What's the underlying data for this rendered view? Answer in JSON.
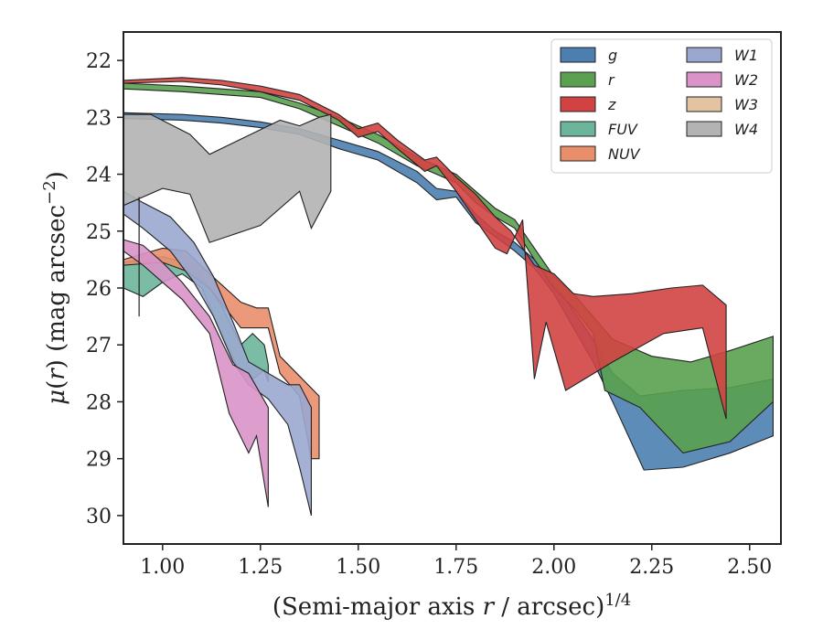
{
  "chart_data": {
    "type": "area",
    "xlabel": "(Semi-major axis r / arcsec)^1/4",
    "xlabel_parts": {
      "prefix": "(Semi-major axis ",
      "var": "r",
      "middle": " / arcsec)",
      "exp": "1/4"
    },
    "ylabel": "μ(r) (mag arcsec−2)",
    "ylabel_parts": {
      "mu": "μ",
      "open": "(",
      "var": "r",
      "close": ")",
      "unit": " (mag arcsec",
      "exp": "−2",
      "end": ")"
    },
    "xlim": [
      0.9,
      2.58
    ],
    "ylim": [
      30.5,
      21.5
    ],
    "y_inverted": true,
    "xticks": [
      1.0,
      1.25,
      1.5,
      1.75,
      2.0,
      2.25,
      2.5
    ],
    "xtick_labels": [
      "1.00",
      "1.25",
      "1.50",
      "1.75",
      "2.00",
      "2.25",
      "2.50"
    ],
    "yticks": [
      22,
      23,
      24,
      25,
      26,
      27,
      28,
      29,
      30
    ],
    "ytick_labels": [
      "22",
      "23",
      "24",
      "25",
      "26",
      "27",
      "28",
      "29",
      "30"
    ],
    "legend_position": "top-right",
    "legend_columns": 2,
    "series": [
      {
        "name": "g",
        "color": "#4c7fb0",
        "upper": [
          [
            0.9,
            22.92
          ],
          [
            1.05,
            22.95
          ],
          [
            1.15,
            23.0
          ],
          [
            1.25,
            23.08
          ],
          [
            1.35,
            23.2
          ],
          [
            1.45,
            23.4
          ],
          [
            1.55,
            23.6
          ],
          [
            1.65,
            23.95
          ],
          [
            1.7,
            24.25
          ],
          [
            1.75,
            24.3
          ],
          [
            1.8,
            24.7
          ],
          [
            1.85,
            25.0
          ],
          [
            1.9,
            25.2
          ],
          [
            1.95,
            25.5
          ],
          [
            2.0,
            25.9
          ],
          [
            2.05,
            26.4
          ],
          [
            2.1,
            26.9
          ],
          [
            2.15,
            27.5
          ],
          [
            2.22,
            27.9
          ],
          [
            2.33,
            27.8
          ],
          [
            2.45,
            27.75
          ],
          [
            2.56,
            27.6
          ]
        ],
        "lower": [
          [
            0.9,
            23.02
          ],
          [
            1.05,
            23.05
          ],
          [
            1.15,
            23.1
          ],
          [
            1.25,
            23.18
          ],
          [
            1.35,
            23.3
          ],
          [
            1.45,
            23.55
          ],
          [
            1.55,
            23.75
          ],
          [
            1.65,
            24.15
          ],
          [
            1.7,
            24.45
          ],
          [
            1.75,
            24.4
          ],
          [
            1.8,
            24.85
          ],
          [
            1.85,
            25.1
          ],
          [
            1.9,
            25.35
          ],
          [
            1.95,
            25.65
          ],
          [
            2.0,
            26.1
          ],
          [
            2.05,
            26.7
          ],
          [
            2.1,
            27.3
          ],
          [
            2.15,
            28.0
          ],
          [
            2.23,
            29.2
          ],
          [
            2.33,
            29.15
          ],
          [
            2.45,
            28.9
          ],
          [
            2.56,
            28.6
          ]
        ]
      },
      {
        "name": "r",
        "color": "#59a14f",
        "upper": [
          [
            0.9,
            22.4
          ],
          [
            1.05,
            22.45
          ],
          [
            1.15,
            22.5
          ],
          [
            1.25,
            22.55
          ],
          [
            1.35,
            22.75
          ],
          [
            1.45,
            23.0
          ],
          [
            1.55,
            23.3
          ],
          [
            1.65,
            23.7
          ],
          [
            1.75,
            24.0
          ],
          [
            1.8,
            24.3
          ],
          [
            1.85,
            24.6
          ],
          [
            1.9,
            24.8
          ],
          [
            1.95,
            25.3
          ],
          [
            2.0,
            25.8
          ],
          [
            2.05,
            26.1
          ],
          [
            2.1,
            26.5
          ],
          [
            2.15,
            26.9
          ],
          [
            2.25,
            27.2
          ],
          [
            2.35,
            27.3
          ],
          [
            2.45,
            27.1
          ],
          [
            2.56,
            26.85
          ]
        ],
        "lower": [
          [
            0.9,
            22.5
          ],
          [
            1.05,
            22.55
          ],
          [
            1.15,
            22.6
          ],
          [
            1.25,
            22.65
          ],
          [
            1.35,
            22.85
          ],
          [
            1.45,
            23.15
          ],
          [
            1.55,
            23.45
          ],
          [
            1.65,
            23.85
          ],
          [
            1.75,
            24.15
          ],
          [
            1.8,
            24.5
          ],
          [
            1.85,
            24.75
          ],
          [
            1.9,
            24.95
          ],
          [
            1.95,
            25.5
          ],
          [
            2.0,
            26.0
          ],
          [
            2.05,
            26.35
          ],
          [
            2.1,
            26.8
          ],
          [
            2.13,
            27.8
          ],
          [
            2.22,
            28.1
          ],
          [
            2.33,
            28.9
          ],
          [
            2.45,
            28.7
          ],
          [
            2.56,
            28.0
          ]
        ]
      },
      {
        "name": "z",
        "color": "#d14343",
        "upper": [
          [
            0.9,
            22.35
          ],
          [
            1.05,
            22.3
          ],
          [
            1.15,
            22.35
          ],
          [
            1.25,
            22.45
          ],
          [
            1.35,
            22.6
          ],
          [
            1.45,
            22.95
          ],
          [
            1.5,
            23.2
          ],
          [
            1.55,
            23.1
          ],
          [
            1.6,
            23.4
          ],
          [
            1.67,
            23.75
          ],
          [
            1.7,
            23.7
          ],
          [
            1.75,
            24.05
          ],
          [
            1.8,
            24.35
          ],
          [
            1.85,
            24.75
          ],
          [
            1.89,
            25.0
          ],
          [
            1.92,
            25.3
          ],
          [
            1.95,
            25.6
          ],
          [
            2.0,
            25.75
          ],
          [
            2.05,
            26.1
          ],
          [
            2.1,
            26.15
          ],
          [
            2.2,
            26.1
          ],
          [
            2.3,
            26.0
          ],
          [
            2.38,
            25.95
          ],
          [
            2.44,
            26.3
          ]
        ],
        "lower": [
          [
            0.9,
            22.4
          ],
          [
            1.05,
            22.37
          ],
          [
            1.15,
            22.43
          ],
          [
            1.25,
            22.55
          ],
          [
            1.35,
            22.7
          ],
          [
            1.45,
            23.05
          ],
          [
            1.5,
            23.35
          ],
          [
            1.55,
            23.25
          ],
          [
            1.6,
            23.55
          ],
          [
            1.67,
            23.95
          ],
          [
            1.7,
            23.85
          ],
          [
            1.75,
            24.3
          ],
          [
            1.8,
            24.8
          ],
          [
            1.85,
            25.3
          ],
          [
            1.88,
            25.4
          ],
          [
            1.92,
            24.8
          ],
          [
            1.95,
            27.6
          ],
          [
            1.98,
            26.6
          ],
          [
            2.03,
            27.8
          ],
          [
            2.15,
            27.3
          ],
          [
            2.28,
            26.8
          ],
          [
            2.38,
            26.7
          ],
          [
            2.44,
            28.3
          ]
        ]
      },
      {
        "name": "FUV",
        "color": "#6bb59a",
        "upper": [
          [
            0.9,
            25.55
          ],
          [
            1.0,
            25.45
          ],
          [
            1.08,
            25.6
          ],
          [
            1.15,
            26.3
          ],
          [
            1.2,
            27.0
          ],
          [
            1.23,
            26.8
          ],
          [
            1.26,
            27.0
          ],
          [
            1.27,
            27.35
          ]
        ],
        "lower": [
          [
            0.9,
            26.0
          ],
          [
            0.95,
            26.15
          ],
          [
            1.0,
            25.9
          ],
          [
            1.05,
            25.75
          ],
          [
            1.1,
            26.0
          ],
          [
            1.15,
            26.8
          ],
          [
            1.2,
            27.5
          ],
          [
            1.23,
            27.6
          ],
          [
            1.26,
            27.45
          ],
          [
            1.27,
            27.65
          ]
        ]
      },
      {
        "name": "NUV",
        "color": "#e98e6b",
        "upper": [
          [
            0.9,
            25.5
          ],
          [
            1.0,
            25.3
          ],
          [
            1.06,
            25.35
          ],
          [
            1.12,
            25.75
          ],
          [
            1.2,
            26.25
          ],
          [
            1.24,
            26.35
          ],
          [
            1.27,
            26.35
          ],
          [
            1.3,
            27.2
          ],
          [
            1.35,
            27.55
          ],
          [
            1.4,
            27.9
          ]
        ],
        "lower": [
          [
            0.9,
            25.6
          ],
          [
            1.0,
            25.55
          ],
          [
            1.06,
            25.7
          ],
          [
            1.12,
            26.0
          ],
          [
            1.2,
            26.7
          ],
          [
            1.27,
            26.7
          ],
          [
            1.3,
            27.5
          ],
          [
            1.35,
            27.9
          ],
          [
            1.38,
            29.0
          ],
          [
            1.4,
            29.0
          ]
        ]
      },
      {
        "name": "W1",
        "color": "#9aa8cf",
        "upper": [
          [
            0.9,
            24.3
          ],
          [
            0.95,
            24.5
          ],
          [
            1.02,
            24.75
          ],
          [
            1.08,
            25.2
          ],
          [
            1.13,
            25.8
          ],
          [
            1.18,
            26.6
          ],
          [
            1.22,
            27.3
          ],
          [
            1.27,
            27.5
          ],
          [
            1.32,
            27.7
          ],
          [
            1.35,
            27.7
          ],
          [
            1.38,
            28.1
          ]
        ],
        "lower": [
          [
            0.9,
            24.7
          ],
          [
            0.95,
            24.95
          ],
          [
            1.02,
            25.35
          ],
          [
            1.08,
            25.9
          ],
          [
            1.13,
            26.5
          ],
          [
            1.18,
            27.3
          ],
          [
            1.22,
            27.7
          ],
          [
            1.27,
            27.95
          ],
          [
            1.32,
            28.4
          ],
          [
            1.35,
            29.15
          ],
          [
            1.38,
            30.0
          ]
        ]
      },
      {
        "name": "W2",
        "color": "#d993c9",
        "upper": [
          [
            0.9,
            25.15
          ],
          [
            0.95,
            25.25
          ],
          [
            1.0,
            25.55
          ],
          [
            1.05,
            25.9
          ],
          [
            1.12,
            26.5
          ],
          [
            1.18,
            27.35
          ],
          [
            1.22,
            27.5
          ],
          [
            1.27,
            28.1
          ]
        ],
        "lower": [
          [
            0.9,
            25.35
          ],
          [
            0.95,
            25.6
          ],
          [
            1.0,
            25.9
          ],
          [
            1.05,
            26.2
          ],
          [
            1.12,
            26.8
          ],
          [
            1.17,
            28.2
          ],
          [
            1.22,
            28.9
          ],
          [
            1.24,
            28.6
          ],
          [
            1.27,
            29.85
          ]
        ]
      },
      {
        "name": "W3",
        "color": "#e3c4a2",
        "upper": [],
        "lower": []
      },
      {
        "name": "W4",
        "color": "#b3b3b3",
        "upper": [
          [
            0.9,
            22.95
          ],
          [
            0.97,
            22.95
          ],
          [
            1.07,
            23.3
          ],
          [
            1.12,
            23.65
          ],
          [
            1.3,
            23.05
          ],
          [
            1.35,
            23.15
          ],
          [
            1.4,
            23.0
          ],
          [
            1.43,
            22.95
          ]
        ],
        "lower": [
          [
            0.9,
            24.55
          ],
          [
            1.0,
            24.25
          ],
          [
            1.07,
            24.35
          ],
          [
            1.12,
            25.2
          ],
          [
            1.25,
            24.9
          ],
          [
            1.35,
            24.3
          ],
          [
            1.38,
            24.95
          ],
          [
            1.43,
            24.3
          ]
        ],
        "errorbar": {
          "x": 0.94,
          "y_low": 24.4,
          "y_high": 26.5
        }
      }
    ]
  }
}
